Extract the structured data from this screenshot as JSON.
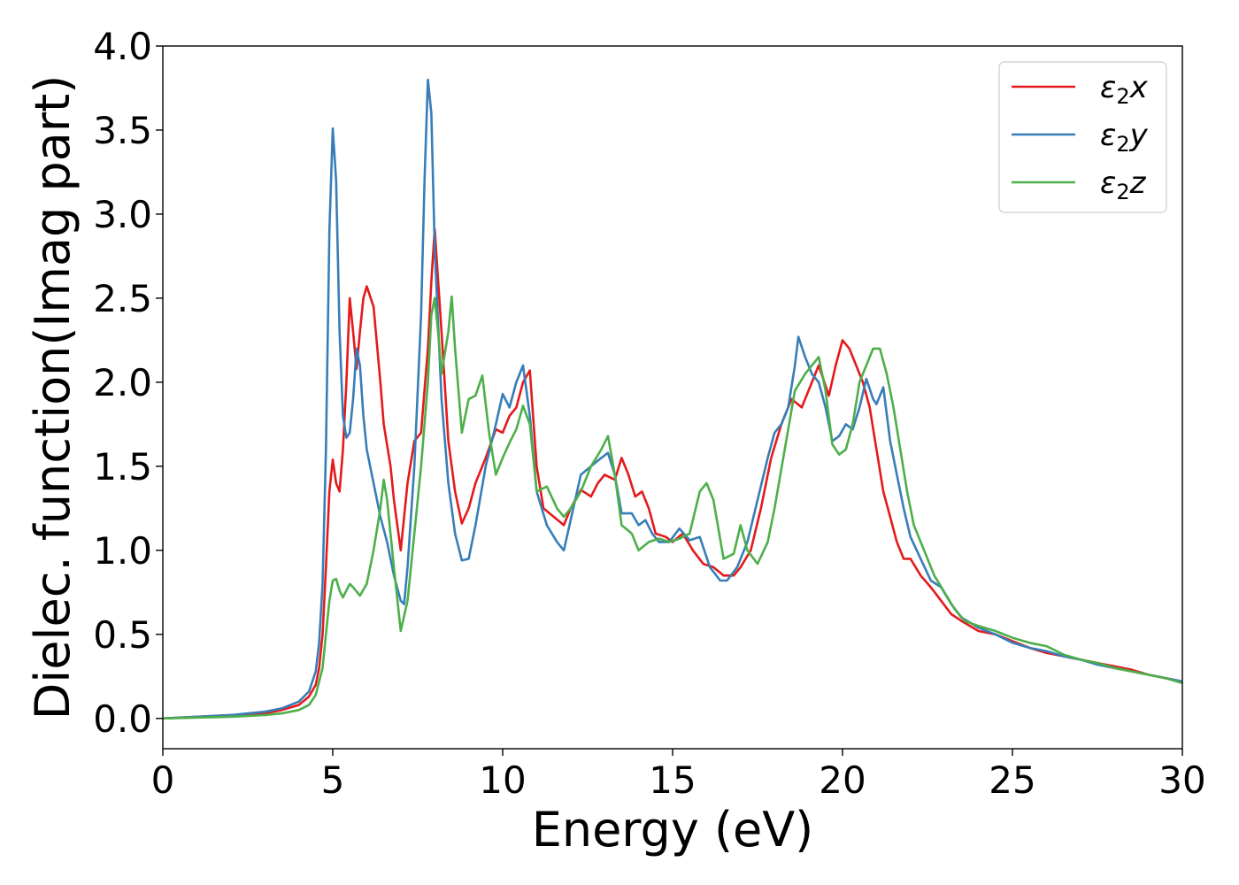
{
  "chart_data": {
    "type": "line",
    "xlabel": "Energy (eV)",
    "ylabel": "Dielec. function(Imag part)",
    "xlim": [
      0,
      30
    ],
    "ylim": [
      -0.18,
      4.0
    ],
    "xticks": [
      "0",
      "5",
      "10",
      "15",
      "20",
      "25",
      "30"
    ],
    "yticks": [
      "0.0",
      "0.5",
      "1.0",
      "1.5",
      "2.0",
      "2.5",
      "3.0",
      "3.5",
      "4.0"
    ],
    "grid": false,
    "legend_position": "top-right",
    "series": [
      {
        "name": "ε2x",
        "legend_base": "ε",
        "legend_sub": "2",
        "legend_suffix": "x",
        "color": "#e41a1c",
        "x": [
          0,
          2,
          3,
          3.5,
          4,
          4.3,
          4.5,
          4.6,
          4.7,
          4.8,
          4.9,
          5.0,
          5.1,
          5.2,
          5.3,
          5.4,
          5.5,
          5.6,
          5.7,
          5.8,
          5.9,
          6.0,
          6.2,
          6.4,
          6.5,
          6.7,
          6.8,
          7.0,
          7.2,
          7.4,
          7.6,
          7.8,
          7.9,
          8.0,
          8.2,
          8.4,
          8.6,
          8.8,
          9.0,
          9.2,
          9.5,
          9.8,
          10.0,
          10.2,
          10.4,
          10.6,
          10.8,
          11.0,
          11.2,
          11.5,
          11.8,
          12.0,
          12.3,
          12.6,
          12.8,
          13.0,
          13.3,
          13.5,
          13.7,
          13.9,
          14.1,
          14.3,
          14.5,
          14.8,
          15.0,
          15.3,
          15.6,
          15.9,
          16.2,
          16.5,
          16.8,
          17.0,
          17.3,
          17.6,
          17.9,
          18.2,
          18.5,
          18.8,
          19.0,
          19.3,
          19.6,
          19.8,
          20.0,
          20.2,
          20.4,
          20.6,
          20.8,
          21.0,
          21.2,
          21.4,
          21.6,
          21.8,
          22.0,
          22.3,
          22.6,
          22.9,
          23.2,
          23.5,
          24.0,
          24.5,
          25.0,
          25.5,
          26.0,
          26.5,
          27.0,
          27.5,
          28.0,
          28.5,
          29.0,
          29.5,
          30.0
        ],
        "y": [
          0.0,
          0.02,
          0.03,
          0.05,
          0.08,
          0.13,
          0.2,
          0.3,
          0.5,
          0.9,
          1.35,
          1.54,
          1.4,
          1.35,
          1.6,
          2.0,
          2.5,
          2.3,
          2.08,
          2.3,
          2.5,
          2.57,
          2.45,
          2.0,
          1.75,
          1.5,
          1.3,
          1.0,
          1.4,
          1.65,
          1.7,
          2.2,
          2.6,
          2.91,
          2.3,
          1.65,
          1.35,
          1.16,
          1.25,
          1.4,
          1.55,
          1.72,
          1.7,
          1.8,
          1.85,
          2.0,
          2.07,
          1.5,
          1.25,
          1.2,
          1.15,
          1.25,
          1.36,
          1.32,
          1.4,
          1.45,
          1.42,
          1.55,
          1.45,
          1.32,
          1.35,
          1.25,
          1.1,
          1.08,
          1.05,
          1.1,
          1.0,
          0.92,
          0.9,
          0.85,
          0.85,
          0.9,
          1.0,
          1.25,
          1.55,
          1.75,
          1.9,
          1.85,
          1.95,
          2.1,
          1.92,
          2.1,
          2.25,
          2.2,
          2.1,
          2.0,
          1.85,
          1.6,
          1.35,
          1.2,
          1.05,
          0.95,
          0.95,
          0.85,
          0.78,
          0.7,
          0.62,
          0.58,
          0.52,
          0.5,
          0.46,
          0.42,
          0.39,
          0.37,
          0.35,
          0.33,
          0.31,
          0.29,
          0.26,
          0.24,
          0.22
        ]
      },
      {
        "name": "ε2y",
        "legend_base": "ε",
        "legend_sub": "2",
        "legend_suffix": "y",
        "color": "#377eb8",
        "x": [
          0,
          2,
          3,
          3.5,
          4,
          4.3,
          4.5,
          4.6,
          4.7,
          4.8,
          4.9,
          5.0,
          5.1,
          5.2,
          5.3,
          5.4,
          5.5,
          5.6,
          5.7,
          5.8,
          5.9,
          6.0,
          6.2,
          6.4,
          6.6,
          6.8,
          7.0,
          7.1,
          7.2,
          7.4,
          7.6,
          7.7,
          7.8,
          7.9,
          8.0,
          8.2,
          8.4,
          8.6,
          8.8,
          9.0,
          9.2,
          9.5,
          9.8,
          10.0,
          10.2,
          10.4,
          10.6,
          10.8,
          11.0,
          11.3,
          11.6,
          11.8,
          12.0,
          12.3,
          12.6,
          12.9,
          13.1,
          13.3,
          13.5,
          13.8,
          14.0,
          14.2,
          14.4,
          14.6,
          14.9,
          15.2,
          15.5,
          15.8,
          16.1,
          16.4,
          16.6,
          16.9,
          17.2,
          17.5,
          17.8,
          18.0,
          18.2,
          18.4,
          18.6,
          18.7,
          18.9,
          19.1,
          19.3,
          19.5,
          19.7,
          19.9,
          20.1,
          20.3,
          20.5,
          20.7,
          20.9,
          21.0,
          21.2,
          21.4,
          21.6,
          21.8,
          22.0,
          22.3,
          22.6,
          22.9,
          23.2,
          23.5,
          24.0,
          24.5,
          25.0,
          25.5,
          26.0,
          26.5,
          27.0,
          27.5,
          28.0,
          28.5,
          29.0,
          29.5,
          30.0
        ],
        "y": [
          0.0,
          0.02,
          0.04,
          0.06,
          0.1,
          0.16,
          0.28,
          0.45,
          0.8,
          1.6,
          2.9,
          3.51,
          3.2,
          2.3,
          1.8,
          1.67,
          1.7,
          1.9,
          2.2,
          2.1,
          1.8,
          1.6,
          1.4,
          1.2,
          1.05,
          0.85,
          0.7,
          0.68,
          0.9,
          1.5,
          2.4,
          3.2,
          3.8,
          3.6,
          2.8,
          1.9,
          1.4,
          1.1,
          0.94,
          0.95,
          1.15,
          1.5,
          1.75,
          1.93,
          1.85,
          2.0,
          2.1,
          1.8,
          1.35,
          1.15,
          1.05,
          1.0,
          1.18,
          1.45,
          1.5,
          1.55,
          1.58,
          1.45,
          1.22,
          1.22,
          1.15,
          1.18,
          1.1,
          1.05,
          1.05,
          1.13,
          1.06,
          1.08,
          0.9,
          0.82,
          0.82,
          0.9,
          1.05,
          1.3,
          1.55,
          1.7,
          1.75,
          1.85,
          2.1,
          2.27,
          2.15,
          2.05,
          2.0,
          1.85,
          1.65,
          1.68,
          1.75,
          1.72,
          1.85,
          2.02,
          1.9,
          1.87,
          1.97,
          1.65,
          1.45,
          1.25,
          1.08,
          0.95,
          0.82,
          0.78,
          0.68,
          0.6,
          0.54,
          0.5,
          0.45,
          0.42,
          0.4,
          0.37,
          0.35,
          0.32,
          0.3,
          0.28,
          0.26,
          0.24,
          0.22
        ]
      },
      {
        "name": "ε2z",
        "legend_base": "ε",
        "legend_sub": "2",
        "legend_suffix": "z",
        "color": "#4daf4a",
        "x": [
          0,
          2,
          3,
          3.5,
          4,
          4.3,
          4.5,
          4.7,
          4.8,
          4.9,
          5.0,
          5.1,
          5.2,
          5.3,
          5.5,
          5.6,
          5.8,
          6.0,
          6.2,
          6.4,
          6.5,
          6.6,
          6.8,
          7.0,
          7.2,
          7.4,
          7.6,
          7.8,
          7.9,
          8.0,
          8.1,
          8.2,
          8.4,
          8.5,
          8.6,
          8.8,
          9.0,
          9.2,
          9.4,
          9.6,
          9.8,
          10.0,
          10.2,
          10.4,
          10.6,
          10.8,
          11.0,
          11.3,
          11.6,
          11.8,
          12.0,
          12.3,
          12.6,
          12.9,
          13.1,
          13.3,
          13.5,
          13.8,
          14.0,
          14.3,
          14.6,
          14.9,
          15.2,
          15.5,
          15.8,
          16.0,
          16.2,
          16.5,
          16.8,
          17.0,
          17.2,
          17.5,
          17.8,
          18.0,
          18.3,
          18.6,
          18.9,
          19.1,
          19.3,
          19.5,
          19.7,
          19.9,
          20.1,
          20.3,
          20.5,
          20.7,
          20.9,
          21.1,
          21.3,
          21.5,
          21.7,
          21.9,
          22.1,
          22.4,
          22.7,
          23.0,
          23.3,
          23.6,
          24.0,
          24.5,
          25.0,
          25.5,
          26.0,
          26.5,
          27.0,
          27.5,
          28.0,
          28.5,
          29.0,
          29.5,
          30.0
        ],
        "y": [
          0.0,
          0.01,
          0.02,
          0.03,
          0.05,
          0.08,
          0.14,
          0.3,
          0.5,
          0.7,
          0.82,
          0.83,
          0.76,
          0.72,
          0.8,
          0.78,
          0.73,
          0.8,
          1.0,
          1.25,
          1.42,
          1.3,
          0.9,
          0.52,
          0.7,
          1.1,
          1.5,
          2.0,
          2.4,
          2.5,
          2.3,
          2.05,
          2.3,
          2.51,
          2.2,
          1.7,
          1.9,
          1.92,
          2.04,
          1.7,
          1.45,
          1.55,
          1.64,
          1.72,
          1.86,
          1.75,
          1.35,
          1.38,
          1.25,
          1.2,
          1.25,
          1.35,
          1.5,
          1.6,
          1.68,
          1.45,
          1.15,
          1.1,
          1.0,
          1.05,
          1.07,
          1.05,
          1.07,
          1.1,
          1.35,
          1.4,
          1.3,
          0.95,
          0.98,
          1.15,
          1.0,
          0.92,
          1.05,
          1.25,
          1.6,
          1.95,
          2.05,
          2.1,
          2.15,
          1.95,
          1.63,
          1.57,
          1.6,
          1.75,
          2.0,
          2.1,
          2.2,
          2.2,
          2.05,
          1.85,
          1.6,
          1.35,
          1.15,
          1.0,
          0.85,
          0.75,
          0.65,
          0.58,
          0.55,
          0.52,
          0.48,
          0.45,
          0.43,
          0.38,
          0.35,
          0.33,
          0.3,
          0.28,
          0.26,
          0.24,
          0.21
        ]
      }
    ]
  }
}
